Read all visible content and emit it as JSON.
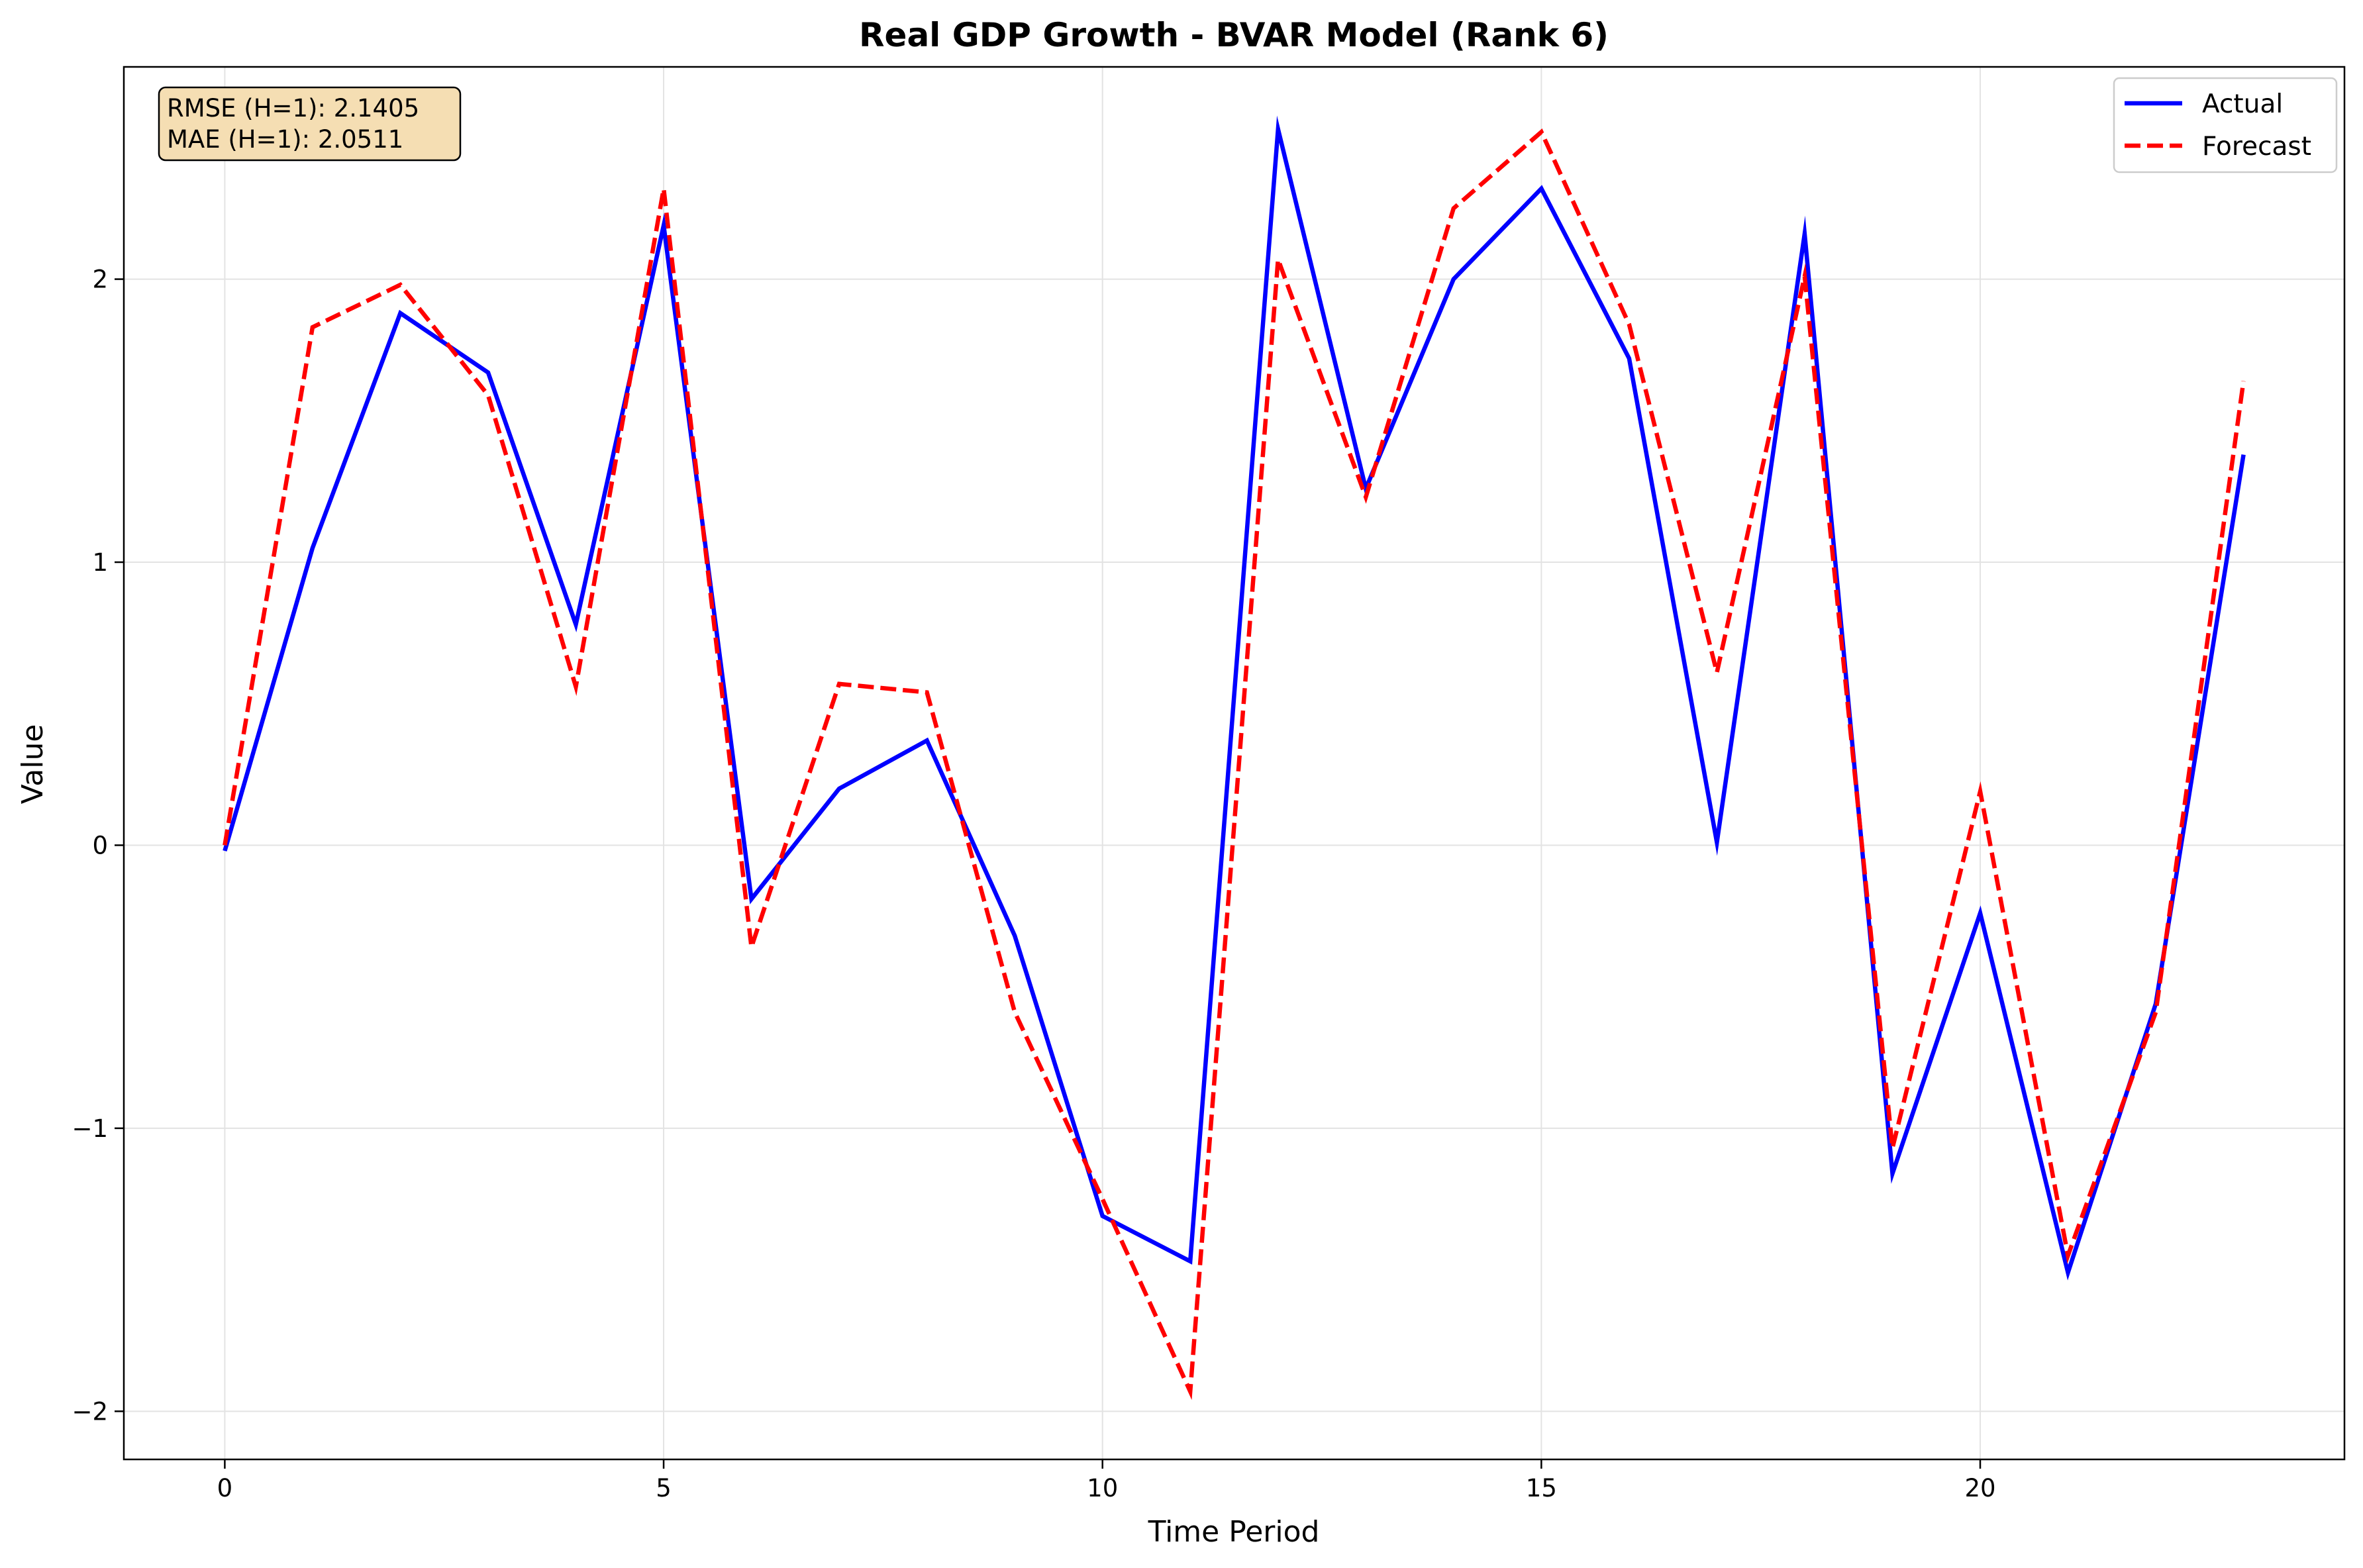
{
  "chart_data": {
    "type": "line",
    "title": "Real GDP Growth - BVAR Model (Rank 6)",
    "xlabel": "Time Period",
    "ylabel": "Value",
    "xlim": [
      -1.15,
      24.15
    ],
    "ylim": [
      -2.17,
      2.75
    ],
    "xticks": [
      0,
      5,
      10,
      15,
      20
    ],
    "yticks": [
      -2,
      -1,
      0,
      1,
      2
    ],
    "grid": true,
    "legend_position": "top-right",
    "x": [
      0,
      1,
      2,
      3,
      4,
      5,
      6,
      7,
      8,
      9,
      10,
      11,
      12,
      13,
      14,
      15,
      16,
      17,
      18,
      19,
      20,
      21,
      22,
      23
    ],
    "series": [
      {
        "name": "Actual",
        "color": "#0000ff",
        "style": "solid",
        "values": [
          -0.02,
          1.05,
          1.88,
          1.67,
          0.78,
          2.19,
          -0.19,
          0.2,
          0.37,
          -0.32,
          -1.31,
          -1.47,
          2.53,
          1.26,
          2.0,
          2.32,
          1.72,
          0.01,
          2.16,
          -1.16,
          -0.24,
          -1.51,
          -0.56,
          1.38
        ]
      },
      {
        "name": "Forecast",
        "color": "#ff0000",
        "style": "dashed",
        "values": [
          0.0,
          1.83,
          1.98,
          1.59,
          0.56,
          2.32,
          -0.36,
          0.57,
          0.54,
          -0.59,
          -1.25,
          -1.93,
          2.07,
          1.23,
          2.25,
          2.52,
          1.84,
          0.61,
          2.01,
          -1.07,
          0.19,
          -1.45,
          -0.59,
          1.64
        ]
      }
    ],
    "annotations": [
      {
        "text": "RMSE (H=1): 2.1405"
      },
      {
        "text": "MAE (H=1): 2.0511"
      }
    ],
    "annotation_box_color": "#f5deb3"
  }
}
